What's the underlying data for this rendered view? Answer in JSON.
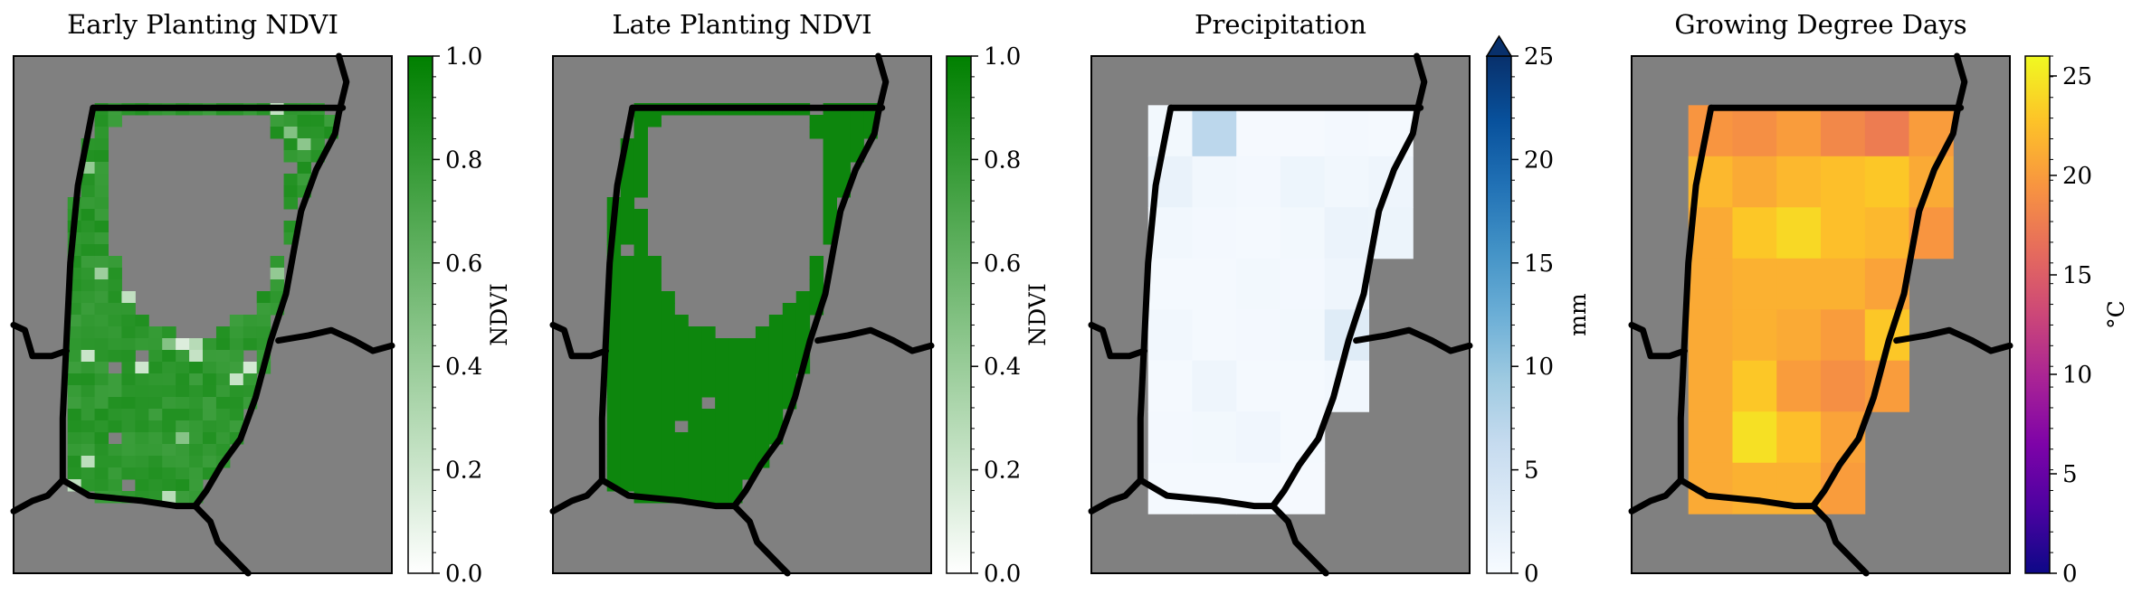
{
  "chart_data": [
    {
      "type": "heatmap",
      "title": "Early Planting NDVI",
      "colorbar": {
        "label": "NDVI",
        "range": [
          0,
          1
        ],
        "ticks": [
          "0.0",
          "0.2",
          "0.4",
          "0.6",
          "0.8",
          "1.0"
        ],
        "colormap": "Greens",
        "extend": "none"
      },
      "background_color": "#808080",
      "mask_pattern": "mixed",
      "grid": {
        "rows": 44,
        "cols": 28
      },
      "values_description_level": 0.82
    },
    {
      "type": "heatmap",
      "title": "Late Planting NDVI",
      "colorbar": {
        "label": "NDVI",
        "range": [
          0,
          1
        ],
        "ticks": [
          "0.0",
          "0.2",
          "0.4",
          "0.6",
          "0.8",
          "1.0"
        ],
        "colormap": "Greens",
        "extend": "none"
      },
      "background_color": "#808080",
      "mask_pattern": "uniform",
      "grid": {
        "rows": 44,
        "cols": 28
      },
      "values_description_level": 0.95
    },
    {
      "type": "heatmap",
      "title": "Precipitation",
      "colorbar": {
        "label": "mm",
        "range": [
          0,
          25
        ],
        "ticks": [
          "0",
          "5",
          "10",
          "15",
          "20",
          "25"
        ],
        "colormap": "Blues",
        "extend": "max"
      },
      "background_color": "#808080",
      "values": [
        [
          0.6,
          7.0,
          0.3,
          0.3,
          0.5,
          0.4
        ],
        [
          1.8,
          0.7,
          0.5,
          1.2,
          0.8,
          1.1
        ],
        [
          0.8,
          0.5,
          0.4,
          0.6,
          1.5,
          1.4
        ],
        [
          0.4,
          0.4,
          0.6,
          0.5,
          1.1,
          null
        ],
        [
          0.7,
          0.4,
          0.5,
          0.6,
          3.0,
          null
        ],
        [
          0.4,
          1.1,
          0.4,
          0.4,
          0.7,
          null
        ],
        [
          0.5,
          0.6,
          0.9,
          0.4,
          null,
          null
        ],
        [
          0.4,
          0.4,
          0.4,
          0.3,
          null,
          null
        ]
      ]
    },
    {
      "type": "heatmap",
      "title": "Growing Degree Days",
      "colorbar": {
        "label": "°C",
        "range": [
          0,
          26
        ],
        "ticks": [
          "0",
          "5",
          "10",
          "15",
          "20",
          "25"
        ],
        "colormap": "plasma",
        "extend": "none"
      },
      "background_color": "#808080",
      "values": [
        [
          19.5,
          19.0,
          20.0,
          18.5,
          17.5,
          20.0
        ],
        [
          22.0,
          21.0,
          22.0,
          22.5,
          23.0,
          21.0
        ],
        [
          21.0,
          23.0,
          24.0,
          22.5,
          22.0,
          19.5
        ],
        [
          21.0,
          21.5,
          21.5,
          21.5,
          20.5,
          null
        ],
        [
          21.0,
          21.5,
          21.0,
          20.0,
          23.0,
          null
        ],
        [
          21.0,
          23.0,
          20.0,
          19.0,
          20.0,
          null
        ],
        [
          21.0,
          24.5,
          22.5,
          20.5,
          null,
          null
        ],
        [
          21.0,
          21.5,
          21.5,
          20.0,
          null,
          null
        ]
      ]
    }
  ]
}
